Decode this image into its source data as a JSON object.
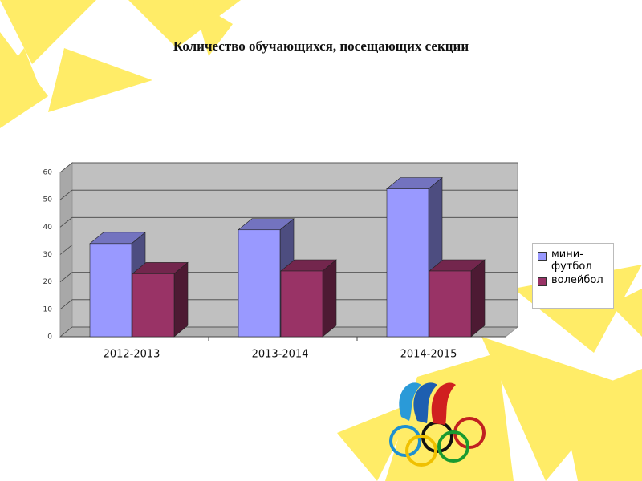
{
  "chart_data": {
    "type": "bar3d",
    "title": "Количество обучающихся, посещающих секции",
    "categories": [
      "2012-2013",
      "2013-2014",
      "2014-2015"
    ],
    "series": [
      {
        "name": "мини-футбол",
        "color": "#9999ff",
        "values": [
          34,
          39,
          54
        ]
      },
      {
        "name": "волейбол",
        "color": "#993366",
        "values": [
          23,
          24,
          24
        ]
      }
    ],
    "ylim": [
      0,
      60
    ],
    "yticks": [
      0,
      10,
      20,
      30,
      40,
      50,
      60
    ],
    "grid": true,
    "legend": "right"
  }
}
